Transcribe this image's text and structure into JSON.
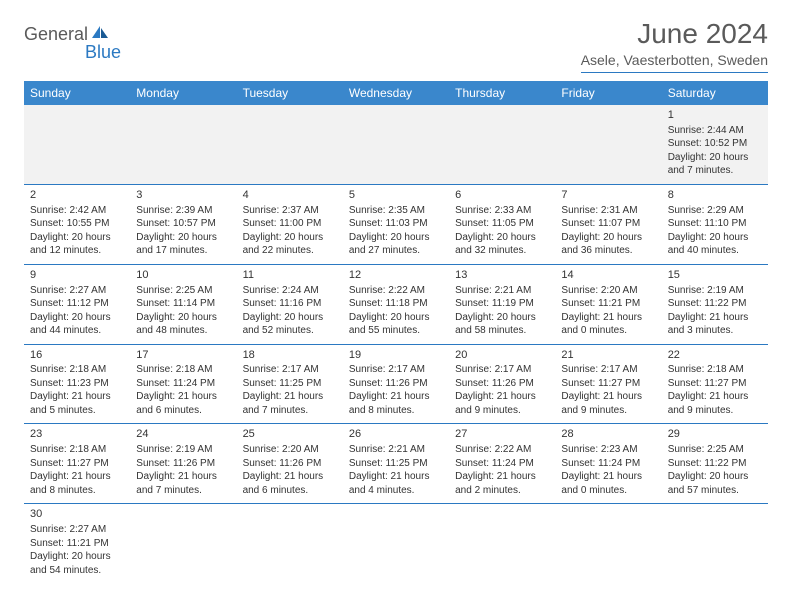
{
  "logo": {
    "textDark": "General",
    "textBlue": "Blue"
  },
  "title": "June 2024",
  "location": "Asele, Vaesterbotten, Sweden",
  "colors": {
    "headerBg": "#3a87cc",
    "headerText": "#ffffff",
    "rowBorder": "#2b79c2",
    "bodyText": "#333333",
    "firstRowBg": "#f2f2f2"
  },
  "dayHeaders": [
    "Sunday",
    "Monday",
    "Tuesday",
    "Wednesday",
    "Thursday",
    "Friday",
    "Saturday"
  ],
  "weeks": [
    [
      null,
      null,
      null,
      null,
      null,
      null,
      {
        "n": "1",
        "sr": "Sunrise: 2:44 AM",
        "ss": "Sunset: 10:52 PM",
        "d1": "Daylight: 20 hours",
        "d2": "and 7 minutes."
      }
    ],
    [
      {
        "n": "2",
        "sr": "Sunrise: 2:42 AM",
        "ss": "Sunset: 10:55 PM",
        "d1": "Daylight: 20 hours",
        "d2": "and 12 minutes."
      },
      {
        "n": "3",
        "sr": "Sunrise: 2:39 AM",
        "ss": "Sunset: 10:57 PM",
        "d1": "Daylight: 20 hours",
        "d2": "and 17 minutes."
      },
      {
        "n": "4",
        "sr": "Sunrise: 2:37 AM",
        "ss": "Sunset: 11:00 PM",
        "d1": "Daylight: 20 hours",
        "d2": "and 22 minutes."
      },
      {
        "n": "5",
        "sr": "Sunrise: 2:35 AM",
        "ss": "Sunset: 11:03 PM",
        "d1": "Daylight: 20 hours",
        "d2": "and 27 minutes."
      },
      {
        "n": "6",
        "sr": "Sunrise: 2:33 AM",
        "ss": "Sunset: 11:05 PM",
        "d1": "Daylight: 20 hours",
        "d2": "and 32 minutes."
      },
      {
        "n": "7",
        "sr": "Sunrise: 2:31 AM",
        "ss": "Sunset: 11:07 PM",
        "d1": "Daylight: 20 hours",
        "d2": "and 36 minutes."
      },
      {
        "n": "8",
        "sr": "Sunrise: 2:29 AM",
        "ss": "Sunset: 11:10 PM",
        "d1": "Daylight: 20 hours",
        "d2": "and 40 minutes."
      }
    ],
    [
      {
        "n": "9",
        "sr": "Sunrise: 2:27 AM",
        "ss": "Sunset: 11:12 PM",
        "d1": "Daylight: 20 hours",
        "d2": "and 44 minutes."
      },
      {
        "n": "10",
        "sr": "Sunrise: 2:25 AM",
        "ss": "Sunset: 11:14 PM",
        "d1": "Daylight: 20 hours",
        "d2": "and 48 minutes."
      },
      {
        "n": "11",
        "sr": "Sunrise: 2:24 AM",
        "ss": "Sunset: 11:16 PM",
        "d1": "Daylight: 20 hours",
        "d2": "and 52 minutes."
      },
      {
        "n": "12",
        "sr": "Sunrise: 2:22 AM",
        "ss": "Sunset: 11:18 PM",
        "d1": "Daylight: 20 hours",
        "d2": "and 55 minutes."
      },
      {
        "n": "13",
        "sr": "Sunrise: 2:21 AM",
        "ss": "Sunset: 11:19 PM",
        "d1": "Daylight: 20 hours",
        "d2": "and 58 minutes."
      },
      {
        "n": "14",
        "sr": "Sunrise: 2:20 AM",
        "ss": "Sunset: 11:21 PM",
        "d1": "Daylight: 21 hours",
        "d2": "and 0 minutes."
      },
      {
        "n": "15",
        "sr": "Sunrise: 2:19 AM",
        "ss": "Sunset: 11:22 PM",
        "d1": "Daylight: 21 hours",
        "d2": "and 3 minutes."
      }
    ],
    [
      {
        "n": "16",
        "sr": "Sunrise: 2:18 AM",
        "ss": "Sunset: 11:23 PM",
        "d1": "Daylight: 21 hours",
        "d2": "and 5 minutes."
      },
      {
        "n": "17",
        "sr": "Sunrise: 2:18 AM",
        "ss": "Sunset: 11:24 PM",
        "d1": "Daylight: 21 hours",
        "d2": "and 6 minutes."
      },
      {
        "n": "18",
        "sr": "Sunrise: 2:17 AM",
        "ss": "Sunset: 11:25 PM",
        "d1": "Daylight: 21 hours",
        "d2": "and 7 minutes."
      },
      {
        "n": "19",
        "sr": "Sunrise: 2:17 AM",
        "ss": "Sunset: 11:26 PM",
        "d1": "Daylight: 21 hours",
        "d2": "and 8 minutes."
      },
      {
        "n": "20",
        "sr": "Sunrise: 2:17 AM",
        "ss": "Sunset: 11:26 PM",
        "d1": "Daylight: 21 hours",
        "d2": "and 9 minutes."
      },
      {
        "n": "21",
        "sr": "Sunrise: 2:17 AM",
        "ss": "Sunset: 11:27 PM",
        "d1": "Daylight: 21 hours",
        "d2": "and 9 minutes."
      },
      {
        "n": "22",
        "sr": "Sunrise: 2:18 AM",
        "ss": "Sunset: 11:27 PM",
        "d1": "Daylight: 21 hours",
        "d2": "and 9 minutes."
      }
    ],
    [
      {
        "n": "23",
        "sr": "Sunrise: 2:18 AM",
        "ss": "Sunset: 11:27 PM",
        "d1": "Daylight: 21 hours",
        "d2": "and 8 minutes."
      },
      {
        "n": "24",
        "sr": "Sunrise: 2:19 AM",
        "ss": "Sunset: 11:26 PM",
        "d1": "Daylight: 21 hours",
        "d2": "and 7 minutes."
      },
      {
        "n": "25",
        "sr": "Sunrise: 2:20 AM",
        "ss": "Sunset: 11:26 PM",
        "d1": "Daylight: 21 hours",
        "d2": "and 6 minutes."
      },
      {
        "n": "26",
        "sr": "Sunrise: 2:21 AM",
        "ss": "Sunset: 11:25 PM",
        "d1": "Daylight: 21 hours",
        "d2": "and 4 minutes."
      },
      {
        "n": "27",
        "sr": "Sunrise: 2:22 AM",
        "ss": "Sunset: 11:24 PM",
        "d1": "Daylight: 21 hours",
        "d2": "and 2 minutes."
      },
      {
        "n": "28",
        "sr": "Sunrise: 2:23 AM",
        "ss": "Sunset: 11:24 PM",
        "d1": "Daylight: 21 hours",
        "d2": "and 0 minutes."
      },
      {
        "n": "29",
        "sr": "Sunrise: 2:25 AM",
        "ss": "Sunset: 11:22 PM",
        "d1": "Daylight: 20 hours",
        "d2": "and 57 minutes."
      }
    ],
    [
      {
        "n": "30",
        "sr": "Sunrise: 2:27 AM",
        "ss": "Sunset: 11:21 PM",
        "d1": "Daylight: 20 hours",
        "d2": "and 54 minutes."
      },
      null,
      null,
      null,
      null,
      null,
      null
    ]
  ]
}
